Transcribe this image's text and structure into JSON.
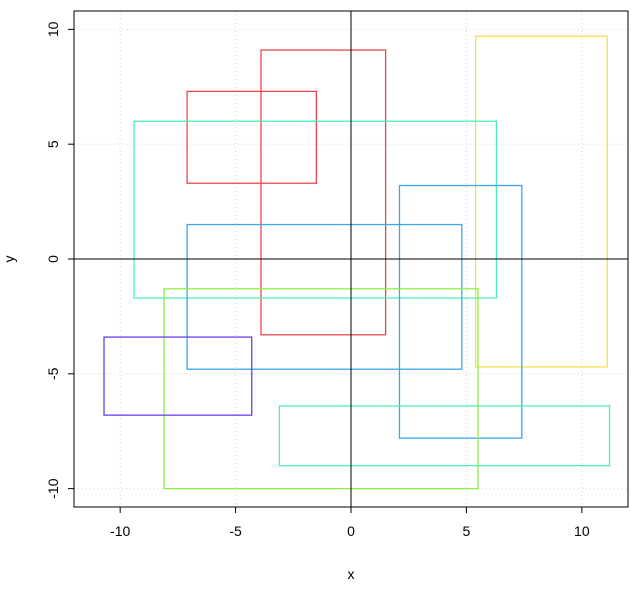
{
  "chart_data": {
    "type": "rectangles",
    "title": "",
    "xlabel": "x",
    "ylabel": "y",
    "xlim": [
      -12,
      12
    ],
    "ylim": [
      -10.8,
      10.8
    ],
    "x_ticks": [
      -10,
      -5,
      0,
      5,
      10
    ],
    "y_ticks": [
      -10,
      -5,
      0,
      5,
      10
    ],
    "x_tick_labels": [
      "-10",
      "-5",
      "0",
      "5",
      "10"
    ],
    "y_tick_labels": [
      "-10",
      "-5",
      "0",
      "5",
      "10"
    ],
    "grid": true,
    "grid_color": "#d3d3d3",
    "reference_lines": {
      "x": 0,
      "y": 0,
      "color": "#000000"
    },
    "rectangles": [
      {
        "x0": -3.9,
        "y0": -3.3,
        "x1": 1.5,
        "y1": 9.1,
        "color": "#e8484b"
      },
      {
        "x0": -7.1,
        "y0": 3.3,
        "x1": -1.5,
        "y1": 7.3,
        "color": "#e8484b"
      },
      {
        "x0": 5.4,
        "y0": -4.7,
        "x1": 11.1,
        "y1": 9.7,
        "color": "#f5e14a"
      },
      {
        "x0": -9.4,
        "y0": -1.7,
        "x1": 6.3,
        "y1": 6.0,
        "color": "#4cf0b5"
      },
      {
        "x0": -7.1,
        "y0": -4.8,
        "x1": 4.8,
        "y1": 1.5,
        "color": "#3aa6f0"
      },
      {
        "x0": 2.1,
        "y0": -7.8,
        "x1": 7.4,
        "y1": 3.2,
        "color": "#3aa6f0"
      },
      {
        "x0": -8.1,
        "y0": -10.0,
        "x1": 5.5,
        "y1": -1.3,
        "color": "#8ef040"
      },
      {
        "x0": -10.7,
        "y0": -6.8,
        "x1": -4.3,
        "y1": -3.4,
        "color": "#6a3ef0"
      },
      {
        "x0": -3.1,
        "y0": -9.0,
        "x1": 11.2,
        "y1": -6.4,
        "color": "#4cf0b5"
      }
    ]
  }
}
